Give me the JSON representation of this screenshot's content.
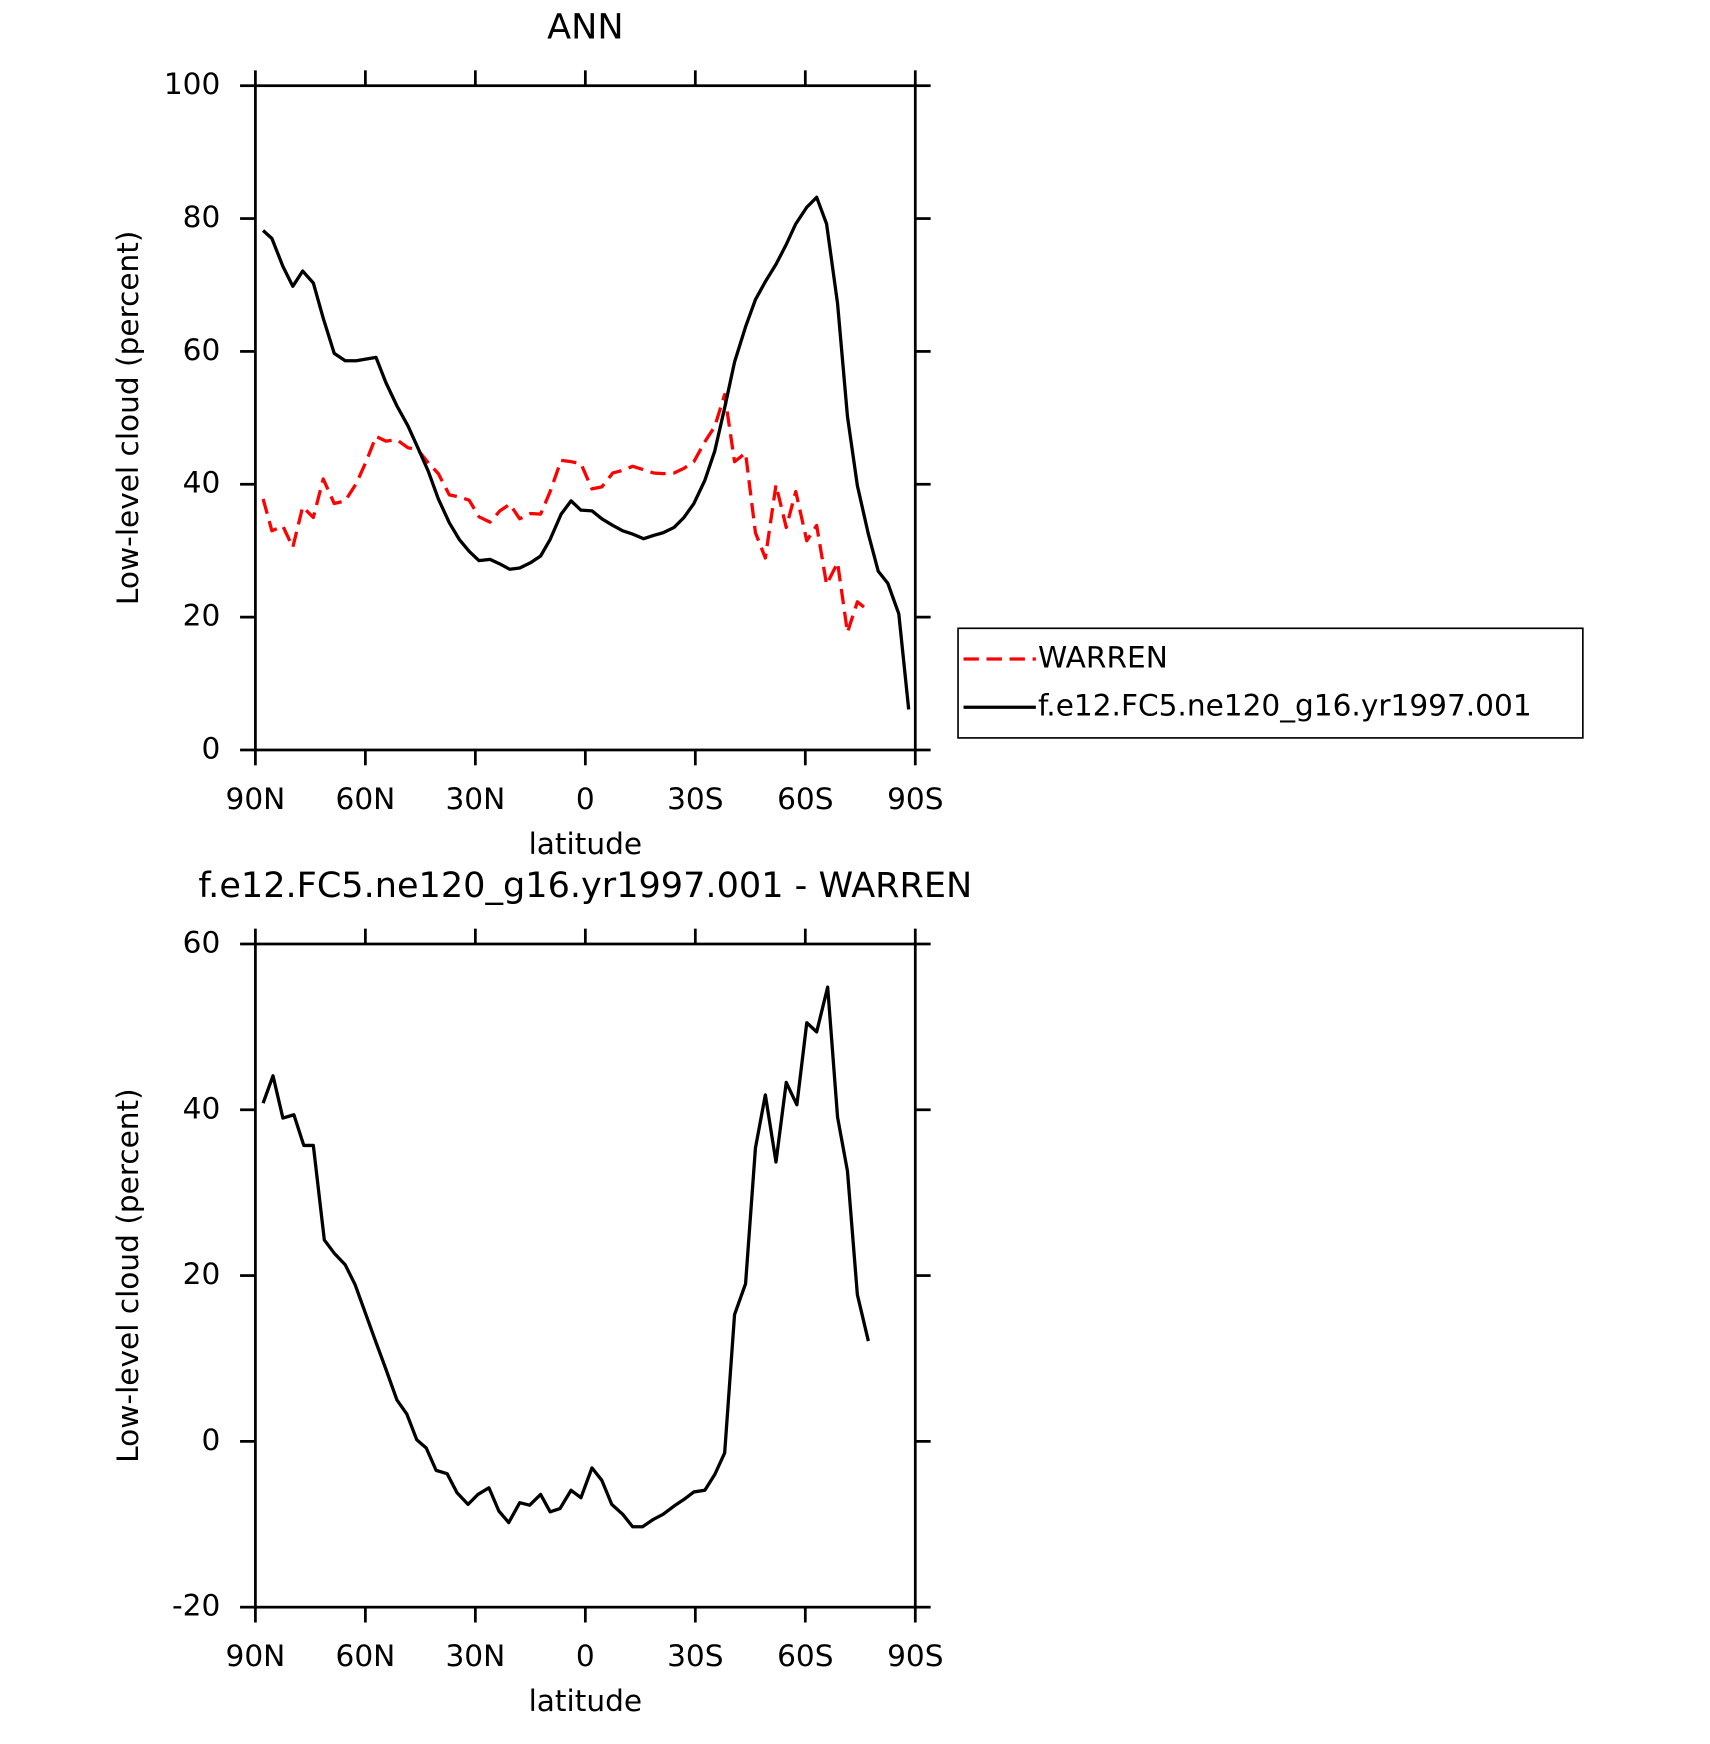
{
  "chart_data": [
    {
      "type": "line",
      "title": "ANN",
      "xlabel": "latitude",
      "ylabel": "Low-level cloud (percent)",
      "xlim": [
        90,
        -90
      ],
      "ylim": [
        0,
        100
      ],
      "xticks": [
        {
          "value": 90,
          "label": "90N"
        },
        {
          "value": 60,
          "label": "60N"
        },
        {
          "value": 30,
          "label": "30N"
        },
        0,
        {
          "value": -30,
          "label": "30S"
        },
        {
          "value": -60,
          "label": "60S"
        },
        {
          "value": -90,
          "label": "90S"
        }
      ],
      "yticks": [
        0,
        20,
        40,
        60,
        80,
        100
      ],
      "legend": "right",
      "series": [
        {
          "name": "WARREN",
          "color": "#ff0000",
          "linestyle": "dashed",
          "x": [
            87.9,
            85.5,
            82.5,
            79.8,
            77.1,
            74.2,
            71.5,
            68.5,
            65.5,
            62.5,
            59.8,
            57.1,
            54.4,
            51.4,
            48.4,
            45.7,
            42.8,
            40.1,
            37.1,
            34.4,
            31.7,
            29.0,
            26.0,
            23.3,
            20.6,
            17.9,
            14.9,
            12.2,
            9.6,
            6.6,
            3.9,
            1.2,
            -1.8,
            -4.5,
            -7.5,
            -10.2,
            -12.9,
            -15.9,
            -18.6,
            -21.2,
            -24.2,
            -26.9,
            -29.6,
            -32.6,
            -35.3,
            -38,
            -40.7,
            -43.7,
            -46.4,
            -49.1,
            -52.0,
            -54.8,
            -57.4,
            -60.4,
            -63.1,
            -65.8,
            -68.8,
            -71.5,
            -74.2,
            -77.2
          ],
          "values": [
            37.8,
            33,
            33.7,
            30.5,
            36.6,
            35,
            40.8,
            37.1,
            37.5,
            40.1,
            43.4,
            47.2,
            46.5,
            46.7,
            45.5,
            45.2,
            43.2,
            41.6,
            38.4,
            38.1,
            37.6,
            35.1,
            34.3,
            36,
            37,
            34.8,
            35.6,
            35.5,
            38.9,
            43.6,
            43.4,
            43.1,
            39.3,
            39.6,
            41.7,
            42.1,
            42.7,
            42.2,
            41.7,
            41.6,
            41.7,
            42.4,
            43.4,
            46.4,
            48.7,
            53.5,
            43.4,
            44.7,
            32.7,
            28.9,
            39.9,
            33.5,
            38.9,
            31.5,
            33.8,
            24.9,
            28.2,
            17.7,
            22.3,
            21
          ]
        },
        {
          "name": "f.e12.FC5.ne120_g16.yr1997.001",
          "color": "#000000",
          "linestyle": "solid",
          "x": [
            87.9,
            85.5,
            82.5,
            79.8,
            77.1,
            74.2,
            71.5,
            68.5,
            65.5,
            62.5,
            57.1,
            54.4,
            51.4,
            48.4,
            45.7,
            42.8,
            40.1,
            37.1,
            34.4,
            31.7,
            29.0,
            26.0,
            23.3,
            20.6,
            17.9,
            14.9,
            12.2,
            9.6,
            6.6,
            3.9,
            1.2,
            -1.8,
            -4.5,
            -7.5,
            -10.2,
            -12.9,
            -15.9,
            -18.6,
            -21.2,
            -24.2,
            -26.9,
            -29.6,
            -32.6,
            -35.3,
            -38,
            -40.7,
            -43.7,
            -46.4,
            -49.1,
            -52.0,
            -54.8,
            -57.4,
            -60.4,
            -63.1,
            -65.8,
            -68.8,
            -71.5,
            -74.2,
            -77.2,
            -79.9,
            -82.5,
            -85.5,
            -88.2
          ],
          "values": [
            78.2,
            77,
            72.8,
            69.8,
            72.1,
            70.3,
            65,
            59.7,
            58.6,
            58.6,
            59.1,
            55.3,
            51.8,
            48.8,
            45.5,
            41.9,
            37.8,
            34.2,
            31.7,
            29.9,
            28.5,
            28.7,
            28,
            27.2,
            27.4,
            28.2,
            29.2,
            31.7,
            35.5,
            37.5,
            36.1,
            36,
            34.8,
            33.8,
            33,
            32.5,
            31.8,
            32.3,
            32.7,
            33.5,
            35,
            37.1,
            40.6,
            45,
            51.5,
            58.4,
            63.7,
            67.8,
            70.5,
            73.1,
            76.1,
            79.2,
            81.7,
            83.2,
            79.2,
            67.2,
            50.2,
            39.8,
            32.5,
            26.9,
            25.1,
            20.5,
            6.1
          ]
        }
      ]
    },
    {
      "type": "line",
      "title": "f.e12.FC5.ne120_g16.yr1997.001 - WARREN",
      "xlabel": "latitude",
      "ylabel": "Low-level cloud (percent)",
      "xlim": [
        90,
        -90
      ],
      "ylim": [
        -20,
        60
      ],
      "xticks": [
        {
          "value": 90,
          "label": "90N"
        },
        {
          "value": 60,
          "label": "60N"
        },
        {
          "value": 30,
          "label": "30N"
        },
        0,
        {
          "value": -30,
          "label": "30S"
        },
        {
          "value": -60,
          "label": "60S"
        },
        {
          "value": -90,
          "label": "90S"
        }
      ],
      "yticks": [
        -20,
        0,
        20,
        40,
        60
      ],
      "color": "#000000",
      "x": [
        87.9,
        85.2,
        82.5,
        79.5,
        76.8,
        74.2,
        71.2,
        68.5,
        65.5,
        62.8,
        60.1,
        57.4,
        54.4,
        51.4,
        48.7,
        46.0,
        43.4,
        40.7,
        37.7,
        35.0,
        32.0,
        29.3,
        26.3,
        23.6,
        20.9,
        17.9,
        15.2,
        12.2,
        9.6,
        6.9,
        3.9,
        1.2,
        -1.8,
        -4.5,
        -7.2,
        -10.2,
        -12.9,
        -15.6,
        -18.6,
        -21.2,
        -24.2,
        -26.9,
        -29.6,
        -32.6,
        -35.3,
        -38,
        -40.7,
        -43.7,
        -46.4,
        -49.1,
        -52.0,
        -54.8,
        -57.7,
        -60.4,
        -63.1,
        -66.1,
        -68.8,
        -71.5,
        -74.2,
        -77.2
      ],
      "values": [
        40.8,
        44.1,
        39,
        39.4,
        35.7,
        35.7,
        24.3,
        22.7,
        21.3,
        18.9,
        15.6,
        12.3,
        8.7,
        5,
        3.3,
        0.2,
        -0.8,
        -3.5,
        -3.9,
        -6.2,
        -7.6,
        -6.4,
        -5.6,
        -8.4,
        -9.8,
        -7.4,
        -7.7,
        -6.4,
        -8.5,
        -8.1,
        -5.9,
        -6.8,
        -3.2,
        -4.7,
        -7.6,
        -8.8,
        -10.3,
        -10.3,
        -9.4,
        -8.8,
        -7.8,
        -7,
        -6.1,
        -5.9,
        -4,
        -1.4,
        15.3,
        19,
        35.4,
        41.8,
        33.7,
        43.3,
        40.6,
        50.5,
        49.4,
        54.8,
        39.1,
        32.6,
        17.7,
        12.1
      ]
    }
  ]
}
